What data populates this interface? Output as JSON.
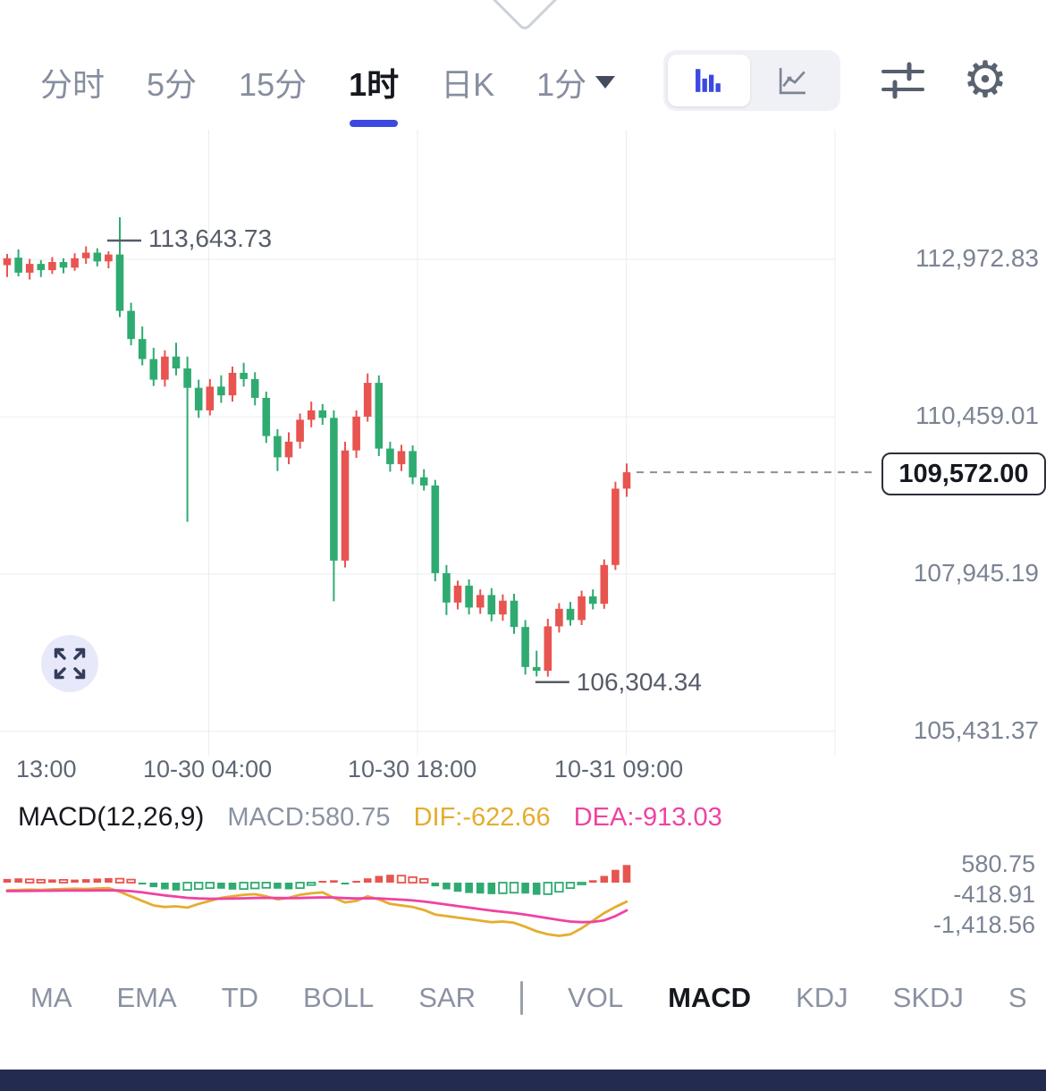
{
  "header": {
    "tabs": [
      {
        "label": "分时"
      },
      {
        "label": "5分"
      },
      {
        "label": "15分"
      },
      {
        "label": "1时",
        "active": true
      },
      {
        "label": "日K"
      },
      {
        "label": "1分",
        "dropdown": true
      }
    ]
  },
  "colors": {
    "up": "#e8544f",
    "down": "#2fab71",
    "accent": "#3c49e0",
    "dif_line": "#e5ad2e",
    "dea_line": "#ef42a2"
  },
  "chart_data": {
    "type": "candlestick",
    "y_axis_labels": [
      "112,972.83",
      "110,459.01",
      "107,945.19",
      "105,431.37"
    ],
    "x_axis_labels": [
      "13:00",
      "10-30 04:00",
      "10-30 18:00",
      "10-31 09:00"
    ],
    "high_label": "113,643.73",
    "low_label": "106,304.34",
    "last_price": "109,572.00",
    "candles": [
      [
        112880,
        113060,
        112690,
        112990
      ],
      [
        113000,
        113130,
        112700,
        112760
      ],
      [
        112760,
        112980,
        112650,
        112900
      ],
      [
        112900,
        112960,
        112690,
        112800
      ],
      [
        112800,
        113010,
        112740,
        112930
      ],
      [
        112930,
        112990,
        112750,
        112840
      ],
      [
        112840,
        113070,
        112790,
        112990
      ],
      [
        112990,
        113180,
        112900,
        113080
      ],
      [
        113080,
        113150,
        112860,
        112940
      ],
      [
        112940,
        113100,
        112830,
        113050
      ],
      [
        113050,
        113643.73,
        112050,
        112150
      ],
      [
        112150,
        112280,
        111600,
        111700
      ],
      [
        111700,
        111900,
        111280,
        111380
      ],
      [
        111380,
        111560,
        110950,
        111050
      ],
      [
        111050,
        111520,
        110940,
        111420
      ],
      [
        111420,
        111640,
        111120,
        111230
      ],
      [
        111230,
        111420,
        108780,
        110920
      ],
      [
        110920,
        111050,
        110440,
        110560
      ],
      [
        110560,
        111060,
        110480,
        110940
      ],
      [
        110940,
        111120,
        110680,
        110800
      ],
      [
        110800,
        111260,
        110700,
        111160
      ],
      [
        111160,
        111320,
        110940,
        111060
      ],
      [
        111060,
        111170,
        110640,
        110760
      ],
      [
        110760,
        110860,
        110040,
        110150
      ],
      [
        110150,
        110260,
        109590,
        109810
      ],
      [
        109810,
        110210,
        109700,
        110060
      ],
      [
        110060,
        110510,
        109950,
        110410
      ],
      [
        110410,
        110700,
        110290,
        110560
      ],
      [
        110560,
        110660,
        110330,
        110440
      ],
      [
        110440,
        110560,
        107510,
        108160
      ],
      [
        108160,
        110060,
        108050,
        109920
      ],
      [
        109920,
        110560,
        109800,
        110460
      ],
      [
        110460,
        111150,
        110380,
        111000
      ],
      [
        111000,
        111120,
        109830,
        109950
      ],
      [
        109950,
        110060,
        109580,
        109700
      ],
      [
        109700,
        110010,
        109590,
        109910
      ],
      [
        109910,
        110000,
        109380,
        109490
      ],
      [
        109490,
        109620,
        109280,
        109360
      ],
      [
        109360,
        109450,
        107830,
        107960
      ],
      [
        107960,
        108090,
        107290,
        107490
      ],
      [
        107490,
        107840,
        107380,
        107760
      ],
      [
        107760,
        107860,
        107300,
        107410
      ],
      [
        107410,
        107700,
        107310,
        107610
      ],
      [
        107610,
        107720,
        107190,
        107300
      ],
      [
        107300,
        107620,
        107200,
        107520
      ],
      [
        107520,
        107630,
        106990,
        107100
      ],
      [
        107100,
        107210,
        106340,
        106460
      ],
      [
        106460,
        106720,
        106310,
        106400
      ],
      [
        106400,
        107230,
        106304.34,
        107110
      ],
      [
        107110,
        107480,
        107010,
        107390
      ],
      [
        107390,
        107500,
        107120,
        107210
      ],
      [
        107210,
        107680,
        107130,
        107590
      ],
      [
        107590,
        107700,
        107380,
        107470
      ],
      [
        107470,
        108180,
        107390,
        108090
      ],
      [
        108090,
        109420,
        108010,
        109310
      ],
      [
        109310,
        109711,
        109180,
        109572
      ]
    ]
  },
  "macd": {
    "title": "MACD(12,26,9)",
    "macd_label": "MACD:580.75",
    "dif_label": "DIF:-622.66",
    "dea_label": "DEA:-913.03",
    "y_axis_labels": [
      "580.75",
      "-418.91",
      "-1,418.56"
    ],
    "hist": [
      120,
      140,
      110,
      95,
      105,
      90,
      100,
      115,
      135,
      150,
      130,
      100,
      -60,
      -150,
      -220,
      -260,
      -240,
      -210,
      -180,
      -200,
      -230,
      -210,
      -190,
      -170,
      -200,
      -220,
      -180,
      -80,
      40,
      80,
      -60,
      50,
      140,
      220,
      260,
      230,
      180,
      120,
      -120,
      -220,
      -300,
      -340,
      -360,
      -380,
      -350,
      -330,
      -360,
      -400,
      -380,
      -300,
      -180,
      -60,
      80,
      220,
      420,
      580.75
    ],
    "dif": [
      -250,
      -240,
      -230,
      -240,
      -220,
      -210,
      -200,
      -210,
      -190,
      -180,
      -300,
      -450,
      -600,
      -750,
      -800,
      -780,
      -820,
      -700,
      -600,
      -500,
      -450,
      -400,
      -380,
      -450,
      -550,
      -500,
      -400,
      -350,
      -320,
      -500,
      -650,
      -600,
      -450,
      -550,
      -700,
      -750,
      -800,
      -900,
      -1050,
      -1100,
      -1150,
      -1200,
      -1250,
      -1300,
      -1280,
      -1320,
      -1450,
      -1600,
      -1700,
      -1750,
      -1700,
      -1500,
      -1250,
      -1000,
      -800,
      -622.66
    ],
    "dea": [
      -280,
      -275,
      -270,
      -268,
      -265,
      -262,
      -260,
      -258,
      -255,
      -252,
      -260,
      -280,
      -320,
      -370,
      -420,
      -460,
      -500,
      -520,
      -530,
      -530,
      -525,
      -515,
      -505,
      -500,
      -505,
      -510,
      -505,
      -495,
      -485,
      -490,
      -510,
      -520,
      -515,
      -520,
      -540,
      -560,
      -585,
      -620,
      -670,
      -720,
      -770,
      -820,
      -870,
      -920,
      -960,
      -1000,
      -1050,
      -1110,
      -1170,
      -1230,
      -1280,
      -1300,
      -1290,
      -1240,
      -1100,
      -913.03
    ]
  },
  "indicators": {
    "items": [
      "MA",
      "EMA",
      "TD",
      "BOLL",
      "SAR",
      "VOL",
      "MACD",
      "KDJ",
      "SKDJ",
      "S"
    ],
    "active": "MACD"
  }
}
